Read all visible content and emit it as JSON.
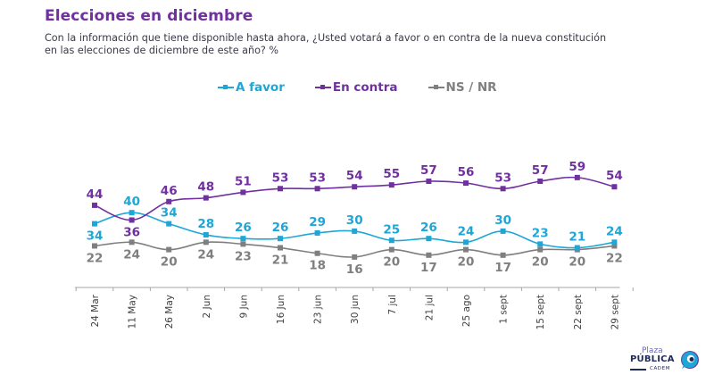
{
  "header": {
    "title": "Elecciones en diciembre",
    "subtitle_line1": "Con la información que tiene disponible hasta ahora, ¿Usted votará a favor o en contra de la nueva constitución",
    "subtitle_line2": "en las elecciones de diciembre de este año? %"
  },
  "legend": [
    {
      "label": "A favor",
      "color": "#1ea6d6"
    },
    {
      "label": "En contra",
      "color": "#7030a0"
    },
    {
      "label": "NS / NR",
      "color": "#7f7f7f"
    }
  ],
  "logo": {
    "plaza": "Plaza",
    "publica": "PÚBLICA",
    "cadem": "CADEM",
    "colors": {
      "navy": "#1e2a5a",
      "blue": "#1ea6d6",
      "purple": "#6b3fa0"
    }
  },
  "chart_data": {
    "type": "line",
    "title": "Elecciones en diciembre",
    "xlabel": "",
    "ylabel": "%",
    "categories": [
      "24 Mar",
      "11 May",
      "26 May",
      "2 Jun",
      "9 Jun",
      "16 Jun",
      "23 jun",
      "30 jun",
      "7 jul",
      "21 jul",
      "25 ago",
      "1 sept",
      "15 sept",
      "22 sept",
      "29 sept"
    ],
    "series": [
      {
        "name": "A favor",
        "color": "#1ea6d6",
        "values": [
          34,
          40,
          34,
          28,
          26,
          26,
          29,
          30,
          25,
          26,
          24,
          30,
          23,
          21,
          24
        ]
      },
      {
        "name": "En contra",
        "color": "#7030a0",
        "values": [
          44,
          36,
          46,
          48,
          51,
          53,
          53,
          54,
          55,
          57,
          56,
          53,
          57,
          59,
          54
        ]
      },
      {
        "name": "NS / NR",
        "color": "#7f7f7f",
        "values": [
          22,
          24,
          20,
          24,
          23,
          21,
          18,
          16,
          20,
          17,
          20,
          17,
          20,
          20,
          22
        ]
      }
    ],
    "ylim": [
      0,
      65
    ],
    "grid": false,
    "y_axis_visible": false,
    "data_labels": true,
    "legend_position": "top-center",
    "label_placement": {
      "A favor": [
        "below",
        "above",
        "above",
        "above",
        "above",
        "above",
        "above",
        "above",
        "above",
        "above",
        "above",
        "above",
        "above",
        "above",
        "above"
      ],
      "En contra": [
        "above",
        "below",
        "above",
        "above",
        "above",
        "above",
        "above",
        "above",
        "above",
        "above",
        "above",
        "above",
        "above",
        "above",
        "above"
      ],
      "NS / NR": [
        "below",
        "below",
        "below",
        "below",
        "below",
        "below",
        "below",
        "below",
        "below",
        "below",
        "below",
        "below",
        "below",
        "below",
        "below"
      ]
    }
  }
}
